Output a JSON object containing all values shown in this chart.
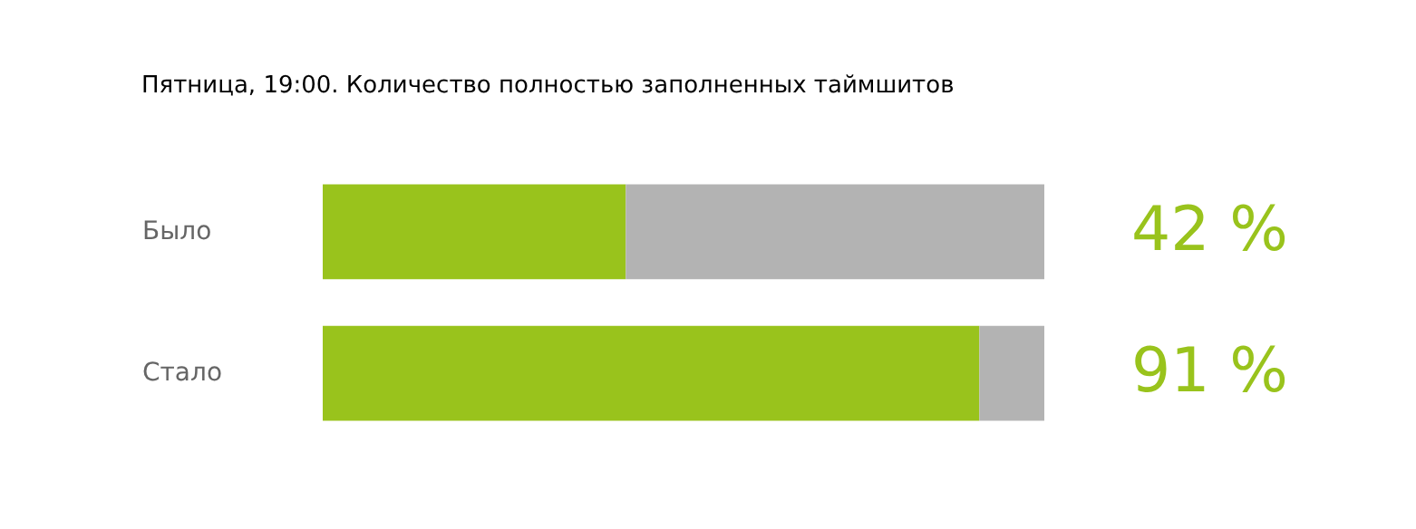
{
  "chart_data": {
    "type": "bar",
    "title": "Пятница, 19:00. Количество полностью заполненных таймшитов",
    "orientation": "horizontal",
    "stacked": true,
    "categories": [
      "Было",
      "Стало"
    ],
    "xlim": [
      0,
      100
    ],
    "tick_labels": "y",
    "grid": false,
    "legend": false,
    "series": [
      {
        "color": "#99c31c",
        "values": [
          42,
          91
        ],
        "value_labels": [
          "42 %",
          "91 %"
        ]
      },
      {
        "color": "#b3b3b3",
        "values": [
          58,
          9
        ]
      }
    ]
  }
}
